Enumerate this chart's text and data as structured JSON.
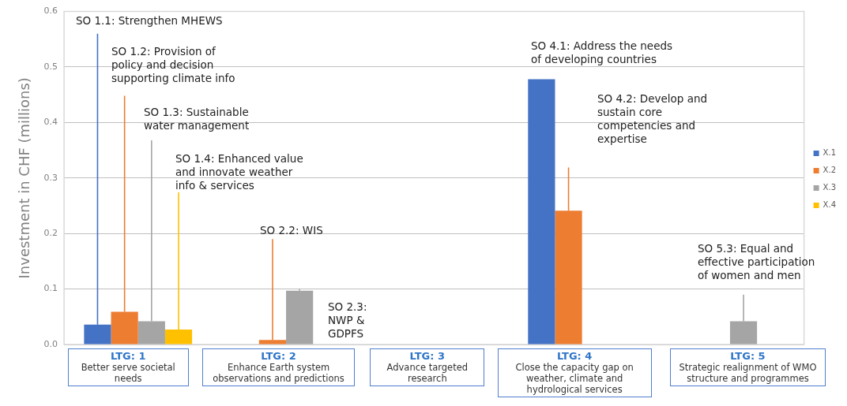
{
  "chart_data": {
    "type": "bar",
    "ylabel": "Investment in CHF (millions)",
    "categories": [
      "LTG: 1\nBetter serve societal needs",
      "LTG: 2\nEnhance Earth system observations and predictions",
      "LTG: 3\nAdvance targeted research",
      "LTG: 4\nClose the capacity gap on weather, climate and hydrological services",
      "LTG: 5\nStrategic realignment of WMO structure and programmes"
    ],
    "series": [
      {
        "name": "X.1",
        "color": "#4472c4",
        "values": [
          0.036,
          null,
          null,
          0.478,
          null
        ],
        "errors": [
          [
            0.036,
            0.56
          ],
          null,
          null,
          null,
          null
        ]
      },
      {
        "name": "X.2",
        "color": "#ed7d31",
        "values": [
          0.059,
          0.008,
          null,
          0.241,
          null
        ],
        "errors": [
          [
            0.059,
            0.448
          ],
          [
            0.008,
            0.19
          ],
          null,
          [
            0.241,
            0.319
          ],
          null
        ]
      },
      {
        "name": "X.3",
        "color": "#a5a5a5",
        "values": [
          0.042,
          0.097,
          null,
          null,
          0.042
        ],
        "errors": [
          [
            0.042,
            0.368
          ],
          [
            0.097,
            0.1
          ],
          null,
          null,
          [
            0.042,
            0.09
          ]
        ]
      },
      {
        "name": "X.4",
        "color": "#ffc000",
        "values": [
          0.027,
          null,
          null,
          null,
          null
        ],
        "errors": [
          [
            0.027,
            0.274
          ],
          null,
          null,
          null,
          null
        ]
      }
    ],
    "ylim": [
      0,
      0.6
    ],
    "yticks": [
      {
        "value": 0,
        "label": "0.0"
      },
      {
        "value": 0.1,
        "label": "0.1"
      },
      {
        "value": 0.2,
        "label": "0.2"
      },
      {
        "value": 0.3,
        "label": "0.3"
      },
      {
        "value": 0.4,
        "label": "0.4"
      },
      {
        "value": 0.5,
        "label": "0.5"
      },
      {
        "value": 0.6,
        "label": "0.6"
      }
    ],
    "grid": "y",
    "legend": "right",
    "annotations": [
      "SO 1.1: Strengthen MHEWS",
      "SO 1.2: Provision of\npolicy and decision\nsupporting climate info",
      "SO 1.3: Sustainable\nwater management",
      "SO 1.4: Enhanced value\nand innovate weather\ninfo & services",
      "SO 2.2: WIS",
      "SO 2.3:\nNWP &\nGDPFS",
      "SO 4.1: Address the needs\nof developing countries",
      "SO 4.2: Develop and\nsustain core\ncompetencies and\nexpertise",
      "SO 5.3: Equal and\neffective participation\nof women and men"
    ]
  }
}
